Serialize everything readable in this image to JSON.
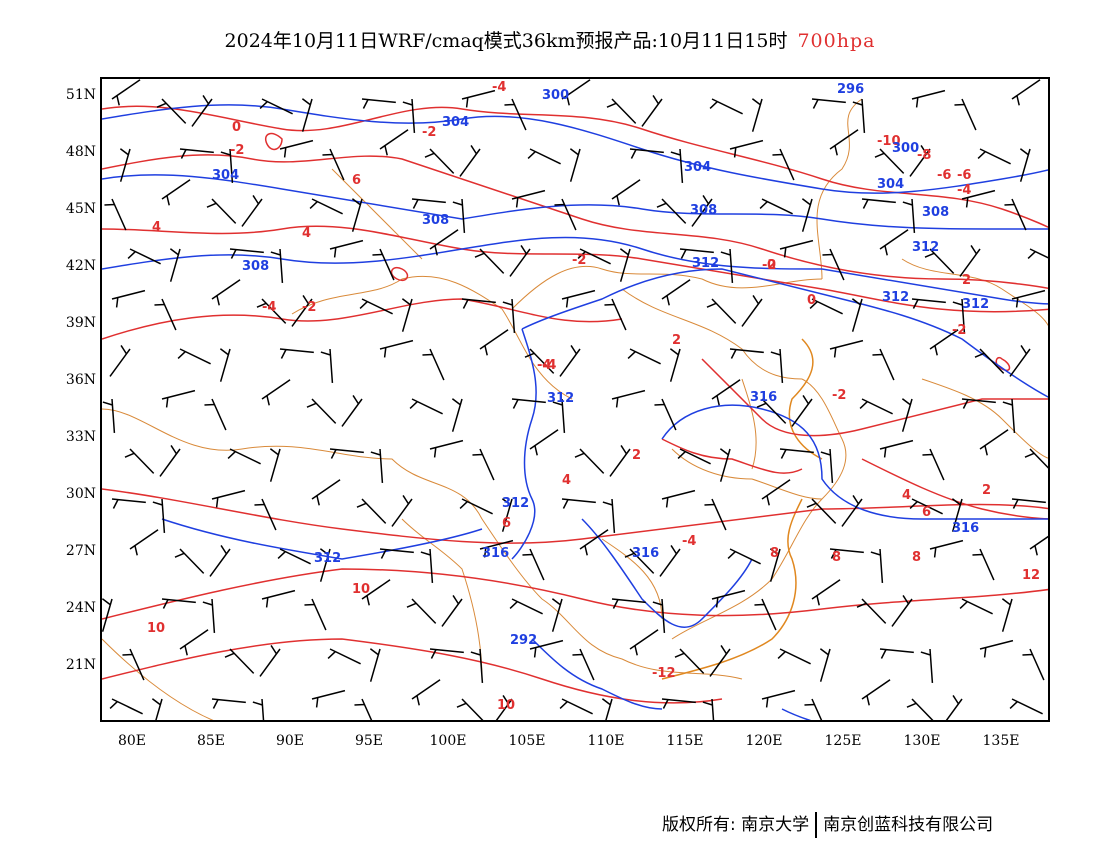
{
  "title": {
    "text": "2024年10月11日WRF/cmaq模式36km预报产品:10月11日15时",
    "level": "700hpa"
  },
  "colors": {
    "temperature": "#e03030",
    "geopotential": "#1f3fe0",
    "border": "#d98a3a",
    "wind": "#000000"
  },
  "axes": {
    "lat_labels": [
      "51N",
      "48N",
      "45N",
      "42N",
      "39N",
      "36N",
      "33N",
      "30N",
      "27N",
      "24N",
      "21N"
    ],
    "lon_labels": [
      "80E",
      "85E",
      "90E",
      "95E",
      "100E",
      "105E",
      "110E",
      "115E",
      "120E",
      "125E",
      "130E",
      "135E"
    ]
  },
  "contour_labels": {
    "temperature": [
      "-4",
      "0",
      "-2",
      "-2",
      "6",
      "4",
      "4",
      "-4",
      "-2",
      "0",
      "-2",
      "2",
      "-4",
      "2",
      "-4",
      "4",
      "6",
      "10",
      "10",
      "10",
      "-12",
      "-10",
      "-8",
      "-6",
      "-4",
      "-2",
      "0",
      "2",
      "-2",
      "-4",
      "-2",
      "2",
      "4",
      "6",
      "8",
      "8",
      "8",
      "12",
      "-6"
    ],
    "geopotential": [
      "300",
      "304",
      "304",
      "304",
      "308",
      "308",
      "308",
      "312",
      "312",
      "312",
      "312",
      "312",
      "316",
      "316",
      "316",
      "292",
      "296",
      "300",
      "304",
      "308",
      "312",
      "312",
      "316"
    ]
  },
  "copyright": {
    "left": "版权所有: 南京大学",
    "right": "南京创蓝科技有限公司"
  }
}
